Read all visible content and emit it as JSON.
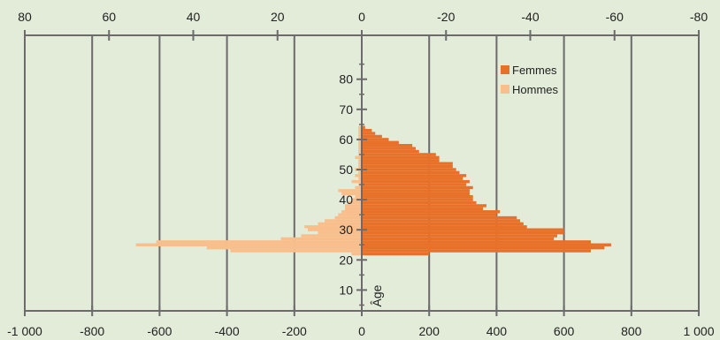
{
  "chart_data": {
    "type": "bar",
    "orientation": "horizontal",
    "title": "",
    "xlabel": "",
    "ylabel": "Âge",
    "bottom_axis": {
      "range": [
        -1000,
        1000
      ],
      "ticks": [
        -1000,
        -800,
        -600,
        -400,
        -200,
        0,
        200,
        400,
        600,
        800,
        1000
      ],
      "tick_labels": [
        "-1 000",
        "-800",
        "-600",
        "-400",
        "-200",
        "0",
        "200",
        "400",
        "600",
        "800",
        "1 000"
      ]
    },
    "top_axis": {
      "range": [
        80,
        -80
      ],
      "ticks": [
        80,
        60,
        40,
        20,
        0,
        -20,
        -40,
        -60,
        -80
      ],
      "tick_labels": [
        "80",
        "60",
        "40",
        "20",
        "0",
        "-20",
        "-40",
        "-60",
        "-80"
      ]
    },
    "age_axis": {
      "range": [
        0,
        90
      ],
      "ticks": [
        10,
        20,
        30,
        40,
        50,
        60,
        70,
        80
      ],
      "tick_labels": [
        "10",
        "20",
        "30",
        "40",
        "50",
        "60",
        "70",
        "80"
      ]
    },
    "grid": true,
    "legend": {
      "position": "top-right",
      "entries": [
        "Femmes",
        "Hommes"
      ]
    },
    "colors": {
      "Femmes": "#e8712a",
      "Hommes": "#f8bf8c",
      "background": "#e3ecd9",
      "grid": "#6b6b6b"
    },
    "ages": [
      22,
      23,
      24,
      25,
      26,
      27,
      28,
      29,
      30,
      31,
      32,
      33,
      34,
      35,
      36,
      37,
      38,
      39,
      40,
      41,
      42,
      43,
      44,
      45,
      46,
      47,
      48,
      49,
      50,
      51,
      52,
      53,
      54,
      55,
      56,
      57,
      58,
      59,
      60,
      61,
      62,
      63,
      64
    ],
    "series": [
      {
        "name": "Femmes",
        "values": [
          200,
          680,
          720,
          740,
          680,
          570,
          580,
          600,
          600,
          490,
          480,
          470,
          460,
          400,
          410,
          360,
          370,
          340,
          330,
          330,
          320,
          320,
          330,
          310,
          320,
          300,
          310,
          290,
          280,
          270,
          270,
          230,
          230,
          220,
          170,
          160,
          150,
          110,
          80,
          60,
          40,
          30,
          10
        ]
      },
      {
        "name": "Hommes",
        "values": [
          -30,
          -390,
          -460,
          -670,
          -610,
          -240,
          -180,
          -130,
          -160,
          -170,
          -130,
          -110,
          -80,
          -70,
          -60,
          -50,
          -50,
          -40,
          -30,
          -20,
          -60,
          -70,
          -20,
          -10,
          -30,
          -10,
          -20,
          -10,
          -20,
          -10,
          -10,
          -10,
          -20,
          -10,
          -10,
          -10,
          -10,
          -10,
          -10,
          -10,
          -10,
          -10,
          -10
        ]
      }
    ]
  }
}
